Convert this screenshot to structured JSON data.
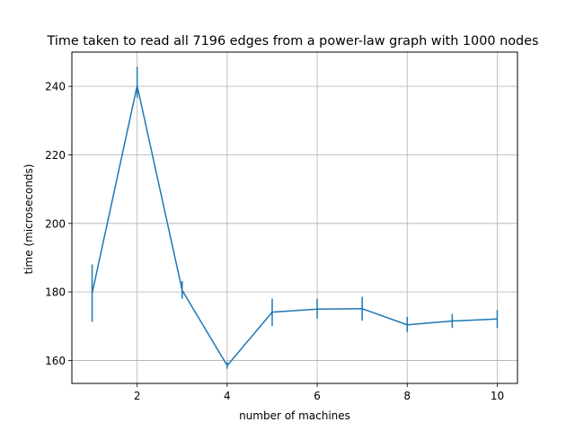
{
  "chart_data": {
    "type": "line",
    "title": "Time taken to read all 7196 edges from a power-law graph with 1000 nodes",
    "xlabel": "number of machines",
    "ylabel": "time (microseconds)",
    "xlim": [
      0.55,
      10.45
    ],
    "ylim": [
      153.3,
      250.0
    ],
    "x_ticks": [
      2,
      4,
      6,
      8,
      10
    ],
    "y_ticks": [
      160,
      180,
      200,
      220,
      240
    ],
    "grid": true,
    "color": "#1f77b4",
    "series": [
      {
        "x": [
          1,
          2,
          3,
          4,
          5,
          6,
          7,
          8,
          9,
          10
        ],
        "values": [
          179.6,
          240.2,
          180.5,
          158.5,
          174.1,
          175.0,
          175.1,
          170.4,
          171.5,
          172.1
        ],
        "err_low": [
          171.3,
          236.7,
          178.0,
          157.6,
          170.1,
          172.2,
          171.6,
          168.3,
          169.5,
          169.5
        ],
        "err_high": [
          188.0,
          245.7,
          183.2,
          159.5,
          178.0,
          178.0,
          178.6,
          172.7,
          173.6,
          174.7
        ]
      }
    ]
  }
}
